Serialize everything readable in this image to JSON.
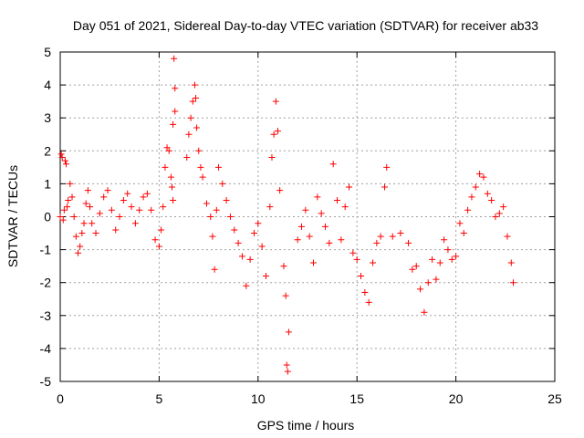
{
  "chart_data": {
    "type": "scatter",
    "title": "Day 051 of 2021, Sidereal Day-to-day VTEC variation (SDTVAR) for receiver ab33",
    "xlabel": "GPS time / hours",
    "ylabel": "SDTVAR / TECUs",
    "xlim": [
      0,
      25
    ],
    "ylim": [
      -5,
      5
    ],
    "xticks": [
      0,
      5,
      10,
      15,
      20,
      25
    ],
    "yticks": [
      -5,
      -4,
      -3,
      -2,
      -1,
      0,
      1,
      2,
      3,
      4,
      5
    ],
    "grid": true,
    "marker": "+",
    "color": "#ff0000",
    "series": [
      {
        "name": "ab33",
        "x": [
          0.0,
          0.05,
          0.1,
          0.15,
          0.2,
          0.25,
          0.3,
          0.35,
          0.4,
          0.5,
          0.6,
          0.7,
          0.8,
          0.9,
          1.0,
          1.1,
          1.2,
          1.3,
          1.4,
          1.5,
          1.6,
          1.8,
          2.0,
          2.2,
          2.4,
          2.6,
          2.8,
          3.0,
          3.2,
          3.4,
          3.6,
          3.8,
          4.0,
          4.2,
          4.4,
          4.6,
          4.8,
          5.0,
          5.1,
          5.2,
          5.3,
          5.4,
          5.5,
          5.6,
          5.7,
          5.8,
          5.75,
          5.8,
          5.7,
          5.65,
          6.4,
          6.5,
          6.6,
          6.7,
          6.8,
          6.85,
          6.9,
          7.0,
          7.1,
          7.2,
          7.4,
          7.6,
          7.7,
          7.8,
          7.9,
          8.0,
          8.2,
          8.4,
          8.6,
          8.8,
          9.0,
          9.2,
          9.4,
          9.6,
          9.8,
          10.0,
          10.2,
          10.4,
          10.6,
          10.7,
          10.8,
          10.9,
          11.0,
          11.1,
          11.3,
          11.4,
          11.45,
          11.5,
          11.55,
          12.0,
          12.2,
          12.4,
          12.6,
          12.8,
          13.0,
          13.2,
          13.4,
          13.6,
          13.8,
          14.0,
          14.2,
          14.4,
          14.6,
          14.8,
          15.0,
          15.2,
          15.4,
          15.6,
          15.8,
          16.0,
          16.2,
          16.4,
          16.5,
          16.8,
          17.2,
          17.6,
          17.8,
          18.0,
          18.2,
          18.4,
          18.6,
          18.8,
          19.0,
          19.2,
          19.4,
          19.6,
          19.8,
          20.0,
          20.2,
          20.4,
          20.6,
          20.8,
          21.0,
          21.2,
          21.4,
          21.6,
          21.8,
          22.0,
          22.2,
          22.4,
          22.6,
          22.8,
          22.9
        ],
        "y": [
          0.0,
          1.9,
          1.8,
          -0.1,
          0.2,
          1.7,
          1.6,
          0.3,
          0.5,
          1.0,
          0.6,
          0.0,
          -0.6,
          -1.1,
          -0.9,
          -0.5,
          -0.2,
          0.4,
          0.8,
          0.3,
          -0.2,
          -0.5,
          0.1,
          0.6,
          0.8,
          0.2,
          -0.4,
          0.0,
          0.5,
          0.7,
          0.3,
          -0.2,
          0.2,
          0.6,
          0.7,
          0.2,
          -0.7,
          -0.9,
          -0.4,
          0.3,
          1.5,
          2.1,
          2.0,
          1.2,
          2.8,
          3.2,
          4.8,
          3.9,
          0.5,
          0.9,
          1.8,
          2.5,
          3.0,
          3.5,
          4.0,
          3.6,
          2.7,
          2.0,
          1.5,
          1.2,
          0.4,
          0.0,
          -0.6,
          -1.6,
          0.2,
          1.5,
          1.0,
          0.5,
          0.0,
          -0.4,
          -0.8,
          -1.2,
          -2.1,
          -1.3,
          -0.5,
          -0.2,
          -0.9,
          -1.8,
          0.3,
          1.8,
          2.5,
          3.5,
          2.6,
          0.8,
          -1.5,
          -2.4,
          -4.5,
          -4.7,
          -3.5,
          -0.7,
          -0.3,
          0.2,
          -0.6,
          -1.4,
          0.6,
          0.1,
          -0.3,
          -0.8,
          1.6,
          0.5,
          -0.7,
          0.3,
          0.9,
          -1.1,
          -1.3,
          -1.8,
          -2.3,
          -2.6,
          -1.4,
          -0.8,
          -0.6,
          0.9,
          1.5,
          -0.6,
          -0.5,
          -0.8,
          -1.6,
          -1.5,
          -2.2,
          -2.9,
          -2.0,
          -1.3,
          -1.9,
          -1.4,
          -0.7,
          -1.0,
          -1.3,
          -1.2,
          -0.2,
          -0.5,
          0.2,
          0.6,
          0.9,
          1.3,
          1.2,
          0.7,
          0.5,
          0.0,
          0.1,
          0.3,
          -0.6,
          -1.4,
          -2.0
        ]
      }
    ]
  }
}
